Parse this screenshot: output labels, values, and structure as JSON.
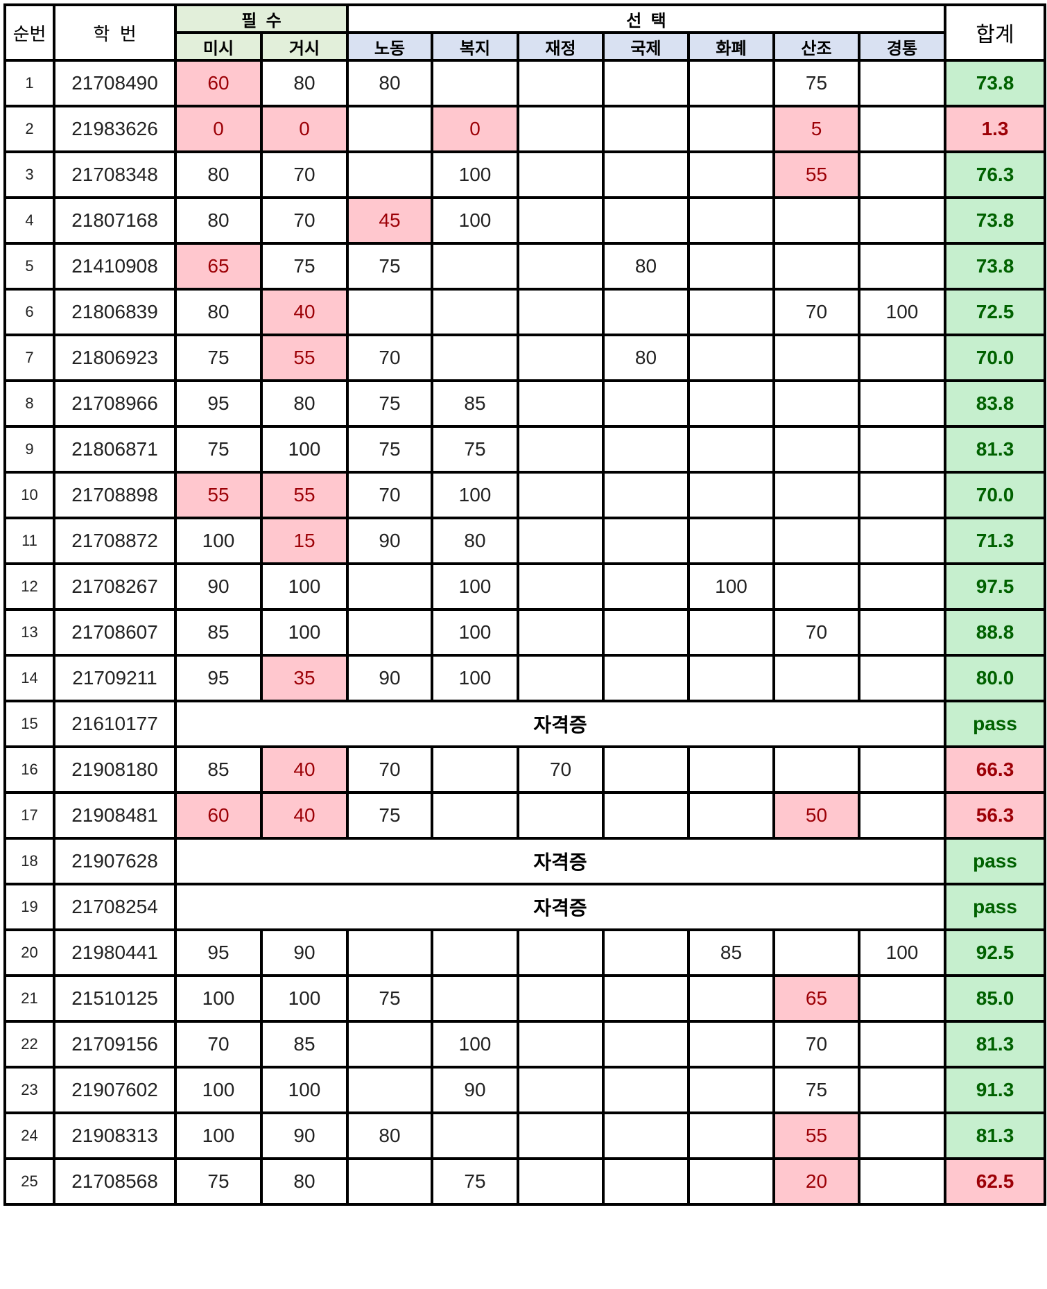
{
  "headers": {
    "no": "순번",
    "student_id": "학  번",
    "required_group": "필  수",
    "elective_group": "선  택",
    "total": "합계",
    "required": [
      "미시",
      "거시"
    ],
    "elective": [
      "노동",
      "복지",
      "재정",
      "국제",
      "화폐",
      "산조",
      "경통"
    ]
  },
  "colors": {
    "required_header": "#e2efda",
    "elective_header": "#d9e1f2",
    "low_fill": "#ffc7ce",
    "low_text": "#9c0006",
    "ok_fill": "#c6efce",
    "ok_text": "#006100"
  },
  "rows": [
    {
      "no": "1",
      "id": "21708490",
      "scores": [
        "60",
        "80",
        "80",
        "",
        "",
        "",
        "",
        "75",
        ""
      ],
      "low": [
        0
      ],
      "total": "73.8",
      "status": "ok"
    },
    {
      "no": "2",
      "id": "21983626",
      "scores": [
        "0",
        "0",
        "",
        "0",
        "",
        "",
        "",
        "5",
        ""
      ],
      "low": [
        0,
        1,
        3,
        7
      ],
      "total": "1.3",
      "status": "bad"
    },
    {
      "no": "3",
      "id": "21708348",
      "scores": [
        "80",
        "70",
        "",
        "100",
        "",
        "",
        "",
        "55",
        ""
      ],
      "low": [
        7
      ],
      "total": "76.3",
      "status": "ok"
    },
    {
      "no": "4",
      "id": "21807168",
      "scores": [
        "80",
        "70",
        "45",
        "100",
        "",
        "",
        "",
        "",
        ""
      ],
      "low": [
        2
      ],
      "total": "73.8",
      "status": "ok"
    },
    {
      "no": "5",
      "id": "21410908",
      "scores": [
        "65",
        "75",
        "75",
        "",
        "",
        "80",
        "",
        "",
        ""
      ],
      "low": [
        0
      ],
      "total": "73.8",
      "status": "ok"
    },
    {
      "no": "6",
      "id": "21806839",
      "scores": [
        "80",
        "40",
        "",
        "",
        "",
        "",
        "",
        "70",
        "100"
      ],
      "low": [
        1
      ],
      "total": "72.5",
      "status": "ok"
    },
    {
      "no": "7",
      "id": "21806923",
      "scores": [
        "75",
        "55",
        "70",
        "",
        "",
        "80",
        "",
        "",
        ""
      ],
      "low": [
        1
      ],
      "total": "70.0",
      "status": "ok"
    },
    {
      "no": "8",
      "id": "21708966",
      "scores": [
        "95",
        "80",
        "75",
        "85",
        "",
        "",
        "",
        "",
        ""
      ],
      "low": [],
      "total": "83.8",
      "status": "ok"
    },
    {
      "no": "9",
      "id": "21806871",
      "scores": [
        "75",
        "100",
        "75",
        "75",
        "",
        "",
        "",
        "",
        ""
      ],
      "low": [],
      "total": "81.3",
      "status": "ok"
    },
    {
      "no": "10",
      "id": "21708898",
      "scores": [
        "55",
        "55",
        "70",
        "100",
        "",
        "",
        "",
        "",
        ""
      ],
      "low": [
        0,
        1
      ],
      "total": "70.0",
      "status": "ok"
    },
    {
      "no": "11",
      "id": "21708872",
      "scores": [
        "100",
        "15",
        "90",
        "80",
        "",
        "",
        "",
        "",
        ""
      ],
      "low": [
        1
      ],
      "total": "71.3",
      "status": "ok"
    },
    {
      "no": "12",
      "id": "21708267",
      "scores": [
        "90",
        "100",
        "",
        "100",
        "",
        "",
        "100",
        "",
        ""
      ],
      "low": [],
      "total": "97.5",
      "status": "ok"
    },
    {
      "no": "13",
      "id": "21708607",
      "scores": [
        "85",
        "100",
        "",
        "100",
        "",
        "",
        "",
        "70",
        ""
      ],
      "low": [],
      "total": "88.8",
      "status": "ok"
    },
    {
      "no": "14",
      "id": "21709211",
      "scores": [
        "95",
        "35",
        "90",
        "100",
        "",
        "",
        "",
        "",
        ""
      ],
      "low": [
        1
      ],
      "total": "80.0",
      "status": "ok"
    },
    {
      "no": "15",
      "id": "21610177",
      "cert": "자격증",
      "total": "pass",
      "status": "ok"
    },
    {
      "no": "16",
      "id": "21908180",
      "scores": [
        "85",
        "40",
        "70",
        "",
        "70",
        "",
        "",
        "",
        ""
      ],
      "low": [
        1
      ],
      "total": "66.3",
      "status": "bad"
    },
    {
      "no": "17",
      "id": "21908481",
      "scores": [
        "60",
        "40",
        "75",
        "",
        "",
        "",
        "",
        "50",
        ""
      ],
      "low": [
        0,
        1,
        7
      ],
      "total": "56.3",
      "status": "bad"
    },
    {
      "no": "18",
      "id": "21907628",
      "cert": "자격증",
      "total": "pass",
      "status": "ok"
    },
    {
      "no": "19",
      "id": "21708254",
      "cert": "자격증",
      "total": "pass",
      "status": "ok"
    },
    {
      "no": "20",
      "id": "21980441",
      "scores": [
        "95",
        "90",
        "",
        "",
        "",
        "",
        "85",
        "",
        "100"
      ],
      "low": [],
      "total": "92.5",
      "status": "ok"
    },
    {
      "no": "21",
      "id": "21510125",
      "scores": [
        "100",
        "100",
        "75",
        "",
        "",
        "",
        "",
        "65",
        ""
      ],
      "low": [
        7
      ],
      "total": "85.0",
      "status": "ok"
    },
    {
      "no": "22",
      "id": "21709156",
      "scores": [
        "70",
        "85",
        "",
        "100",
        "",
        "",
        "",
        "70",
        ""
      ],
      "low": [],
      "total": "81.3",
      "status": "ok"
    },
    {
      "no": "23",
      "id": "21907602",
      "scores": [
        "100",
        "100",
        "",
        "90",
        "",
        "",
        "",
        "75",
        ""
      ],
      "low": [],
      "total": "91.3",
      "status": "ok"
    },
    {
      "no": "24",
      "id": "21908313",
      "scores": [
        "100",
        "90",
        "80",
        "",
        "",
        "",
        "",
        "55",
        ""
      ],
      "low": [
        7
      ],
      "total": "81.3",
      "status": "ok"
    },
    {
      "no": "25",
      "id": "21708568",
      "scores": [
        "75",
        "80",
        "",
        "75",
        "",
        "",
        "",
        "20",
        ""
      ],
      "low": [
        7
      ],
      "total": "62.5",
      "status": "bad"
    }
  ]
}
